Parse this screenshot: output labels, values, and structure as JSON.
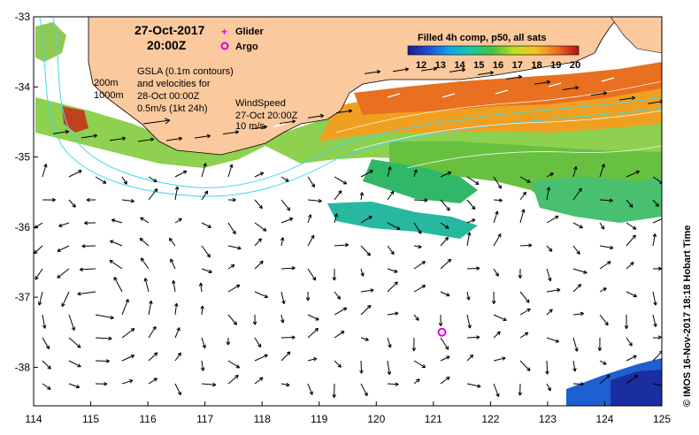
{
  "map": {
    "timestamp_date": "27-Oct-2017",
    "timestamp_time": "20:00Z",
    "legend_glider": "Glider",
    "legend_argo": "Argo",
    "isobath_200": "200m",
    "isobath_1000": "1000m",
    "gsla_line1": "GSLA (0.1m contours)",
    "gsla_line2": "and velocities for",
    "gsla_line3": "28-Oct 00:00Z",
    "gsla_line4": "0.5m/s (1kt 24h)",
    "wind_line1": "WindSpeed",
    "wind_line2": "27-Oct 20:00Z",
    "wind_line3": "10 m/s",
    "colorbar_title": "Filled 4h comp, p50, all sats",
    "colorbar_ticks": [
      "12",
      "13",
      "14",
      "15",
      "16",
      "17",
      "18",
      "19",
      "20"
    ],
    "credit": "© IMOS 16-Nov-2017 18:18 Hobart Time",
    "x_ticks": [
      "114",
      "115",
      "116",
      "117",
      "118",
      "119",
      "120",
      "121",
      "122",
      "123",
      "124",
      "125"
    ],
    "y_ticks": [
      "-33",
      "-34",
      "-35",
      "-36",
      "-37",
      "-38"
    ],
    "colors": {
      "land": "#fbc99e",
      "isobath": "#40d8f0",
      "glider": "#e000e0",
      "argo": "#e000e0",
      "vector": "#000000",
      "wind": "#ffffff"
    },
    "argo_position": {
      "lon": 121.15,
      "lat": -37.5
    }
  }
}
